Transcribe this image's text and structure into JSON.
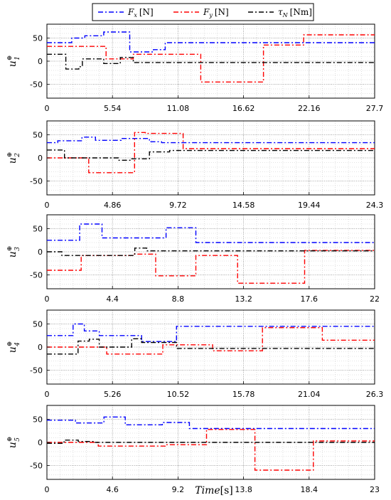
{
  "legend": {
    "entries": [
      {
        "label": "F",
        "sub": "x",
        "unit": "[N]",
        "color": "#0000ff"
      },
      {
        "label": "F",
        "sub": "y",
        "unit": "[N]",
        "color": "#ff0000"
      },
      {
        "label": "τ",
        "sub": "N",
        "unit": "[Nm]",
        "color": "#000000"
      }
    ]
  },
  "xlabel": "Time[s]",
  "chart_data": [
    {
      "type": "line",
      "ylabel": "u",
      "ysub": "1",
      "ysup": "⊕",
      "xlim": [
        0,
        27.7
      ],
      "ylim": [
        -80,
        80
      ],
      "xticks": [
        0,
        5.54,
        11.08,
        16.62,
        22.16,
        27.7
      ],
      "xtick_labels": [
        "0",
        "5.54",
        "11.08",
        "16.62",
        "22.16",
        "27.7"
      ],
      "yticks": [
        50,
        0,
        -50
      ],
      "series": [
        {
          "name": "Fx",
          "x": [
            0,
            2.1,
            2.1,
            3.2,
            3.2,
            4.8,
            4.8,
            7.0,
            7.0,
            9.0,
            9.0,
            10.0,
            10.0,
            27.7
          ],
          "y": [
            40,
            40,
            50,
            50,
            55,
            55,
            63,
            63,
            20,
            20,
            25,
            25,
            40,
            40
          ]
        },
        {
          "name": "Fy",
          "x": [
            0,
            5.0,
            5.0,
            7.3,
            7.3,
            13.0,
            13.0,
            18.3,
            18.3,
            21.7,
            21.7,
            27.7
          ],
          "y": [
            32,
            32,
            5,
            5,
            15,
            15,
            -45,
            -45,
            35,
            35,
            57,
            57
          ]
        },
        {
          "name": "τN",
          "x": [
            0,
            1.6,
            1.6,
            2.7,
            2.7,
            3.0,
            3.0,
            4.8,
            4.8,
            6.2,
            6.2,
            7.3,
            7.3,
            27.7
          ],
          "y": [
            15,
            15,
            -17,
            -17,
            -12,
            -12,
            5,
            5,
            -5,
            -5,
            8,
            8,
            -3,
            -3
          ]
        }
      ]
    },
    {
      "type": "line",
      "ylabel": "u",
      "ysub": "2",
      "ysup": "⊕",
      "xlim": [
        0,
        24.3
      ],
      "ylim": [
        -80,
        80
      ],
      "xticks": [
        0,
        4.86,
        9.72,
        14.58,
        19.44,
        24.3
      ],
      "xtick_labels": [
        "0",
        "4.86",
        "9.72",
        "14.58",
        "19.44",
        "24.3"
      ],
      "yticks": [
        50,
        0,
        -50
      ],
      "series": [
        {
          "name": "Fx",
          "x": [
            0,
            0.8,
            0.8,
            2.6,
            2.6,
            3.6,
            3.6,
            5.5,
            5.5,
            7.6,
            7.6,
            8.5,
            8.5,
            24.3
          ],
          "y": [
            33,
            33,
            37,
            37,
            45,
            45,
            38,
            38,
            42,
            42,
            35,
            35,
            33,
            33
          ]
        },
        {
          "name": "Fy",
          "x": [
            0,
            3.1,
            3.1,
            6.5,
            6.5,
            7.3,
            7.3,
            10.1,
            10.1,
            24.3
          ],
          "y": [
            0,
            0,
            -32,
            -32,
            55,
            55,
            53,
            53,
            20,
            20
          ]
        },
        {
          "name": "τN",
          "x": [
            0,
            1.3,
            1.3,
            5.3,
            5.3,
            6.2,
            6.2,
            7.6,
            7.6,
            9.1,
            9.1,
            24.3
          ],
          "y": [
            17,
            17,
            0,
            0,
            -5,
            -5,
            -2,
            -2,
            13,
            13,
            16,
            16
          ]
        }
      ]
    },
    {
      "type": "line",
      "ylabel": "u",
      "ysub": "3",
      "ysup": "⊕",
      "xlim": [
        0,
        22
      ],
      "ylim": [
        -80,
        80
      ],
      "xticks": [
        0,
        4.4,
        8.8,
        13.2,
        17.6,
        22
      ],
      "xtick_labels": [
        "0",
        "4.4",
        "8.8",
        "13.2",
        "17.6",
        "22"
      ],
      "yticks": [
        50,
        0,
        -50
      ],
      "series": [
        {
          "name": "Fx",
          "x": [
            0,
            2.2,
            2.2,
            3.7,
            3.7,
            8.0,
            8.0,
            10.0,
            10.0,
            22
          ],
          "y": [
            25,
            25,
            60,
            60,
            30,
            30,
            52,
            52,
            20,
            20
          ]
        },
        {
          "name": "Fy",
          "x": [
            0,
            2.3,
            2.3,
            5.8,
            5.8,
            7.3,
            7.3,
            10.0,
            10.0,
            12.8,
            12.8,
            17.3,
            17.3,
            22
          ],
          "y": [
            -40,
            -40,
            -8,
            -8,
            -5,
            -5,
            -52,
            -52,
            -8,
            -8,
            -68,
            -68,
            3,
            3
          ]
        },
        {
          "name": "τN",
          "x": [
            0,
            1.0,
            1.0,
            5.9,
            5.9,
            6.7,
            6.7,
            22
          ],
          "y": [
            0,
            0,
            -8,
            -8,
            8,
            8,
            2,
            2
          ]
        }
      ]
    },
    {
      "type": "line",
      "ylabel": "u",
      "ysub": "4",
      "ysup": "⊕",
      "xlim": [
        0,
        26.3
      ],
      "ylim": [
        -80,
        80
      ],
      "xticks": [
        0,
        5.26,
        10.52,
        15.78,
        21.04,
        26.3
      ],
      "xtick_labels": [
        "0",
        "5.26",
        "10.52",
        "15.78",
        "21.04",
        "26.3"
      ],
      "yticks": [
        50,
        0,
        -50
      ],
      "series": [
        {
          "name": "Fx",
          "x": [
            0,
            2.1,
            2.1,
            3.0,
            3.0,
            4.2,
            4.2,
            7.6,
            7.6,
            10.4,
            10.4,
            26.3
          ],
          "y": [
            25,
            25,
            50,
            50,
            35,
            35,
            25,
            25,
            12,
            12,
            45,
            45
          ]
        },
        {
          "name": "Fy",
          "x": [
            0,
            4.8,
            4.8,
            9.3,
            9.3,
            13.3,
            13.3,
            17.3,
            17.3,
            22.1,
            22.1,
            26.3
          ],
          "y": [
            0,
            0,
            -15,
            -15,
            5,
            5,
            -8,
            -8,
            42,
            42,
            15,
            15
          ]
        },
        {
          "name": "τN",
          "x": [
            0,
            2.5,
            2.5,
            3.4,
            3.4,
            4.2,
            4.2,
            6.8,
            6.8,
            7.6,
            7.6,
            10.4,
            10.4,
            26.3
          ],
          "y": [
            -15,
            -15,
            13,
            13,
            17,
            17,
            0,
            0,
            18,
            18,
            10,
            10,
            -3,
            -3
          ]
        }
      ]
    },
    {
      "type": "line",
      "ylabel": "u",
      "ysub": "5",
      "ysup": "⊕",
      "xlim": [
        0,
        23
      ],
      "ylim": [
        -80,
        80
      ],
      "xticks": [
        0,
        4.6,
        9.2,
        13.8,
        18.4,
        23
      ],
      "xtick_labels": [
        "0",
        "4.6",
        "9.2",
        "13.8",
        "18.4",
        "23"
      ],
      "yticks": [
        50,
        0,
        -50
      ],
      "series": [
        {
          "name": "Fx",
          "x": [
            0,
            2.0,
            2.0,
            4.0,
            4.0,
            5.5,
            5.5,
            8.1,
            8.1,
            10.0,
            10.0,
            23
          ],
          "y": [
            48,
            48,
            42,
            42,
            55,
            55,
            38,
            38,
            43,
            43,
            30,
            30
          ]
        },
        {
          "name": "Fy",
          "x": [
            0,
            3.6,
            3.6,
            8.3,
            8.3,
            11.2,
            11.2,
            14.6,
            14.6,
            18.7,
            18.7,
            23
          ],
          "y": [
            0,
            0,
            -8,
            -8,
            -5,
            -5,
            28,
            28,
            -60,
            -60,
            3,
            3
          ]
        },
        {
          "name": "τN",
          "x": [
            0,
            1.2,
            1.2,
            2.2,
            2.2,
            3.4,
            3.4,
            23
          ],
          "y": [
            -2,
            -2,
            5,
            5,
            2,
            2,
            0,
            0
          ]
        }
      ]
    }
  ]
}
